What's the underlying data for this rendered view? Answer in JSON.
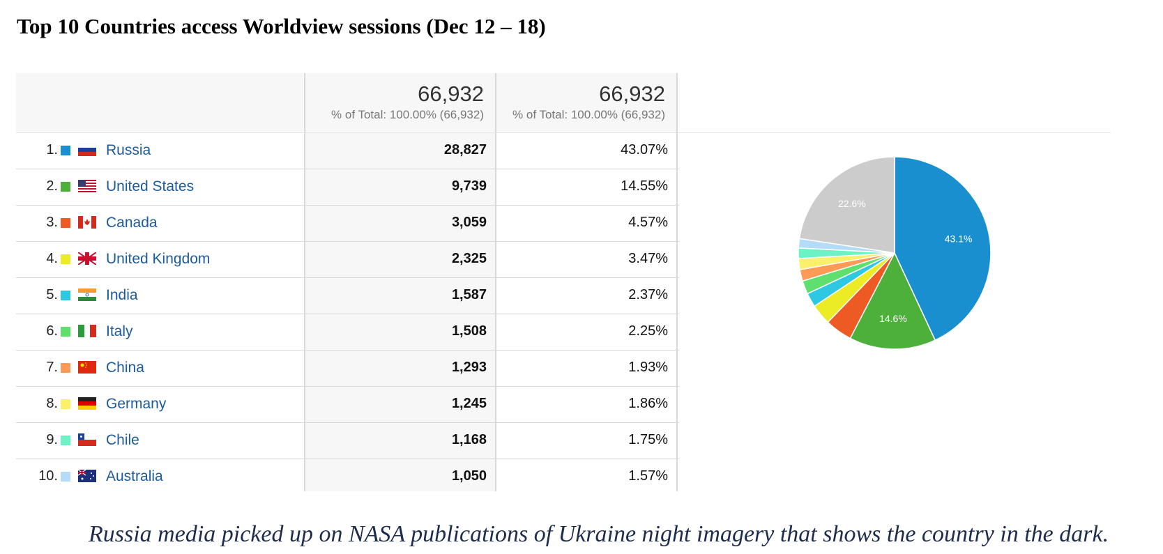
{
  "title": "Top 10 Countries access Worldview sessions (Dec 12 – 18)",
  "caption": "Russia media picked up on NASA publications of Ukraine night imagery that shows the country in the dark.",
  "header": {
    "col1_value": "66,932",
    "col1_sub": "% of Total: 100.00% (66,932)",
    "col2_value": "66,932",
    "col2_sub": "% of Total: 100.00% (66,932)"
  },
  "rows": [
    {
      "index": "1.",
      "flag": "russia-flag",
      "country": "Russia",
      "sessions": "28,827",
      "percent": "43.07%",
      "color": "#1a8fd0"
    },
    {
      "index": "2.",
      "flag": "us-flag",
      "country": "United States",
      "sessions": "9,739",
      "percent": "14.55%",
      "color": "#4cb03a"
    },
    {
      "index": "3.",
      "flag": "canada-flag",
      "country": "Canada",
      "sessions": "3,059",
      "percent": "4.57%",
      "color": "#ed5a23"
    },
    {
      "index": "4.",
      "flag": "uk-flag",
      "country": "United Kingdom",
      "sessions": "2,325",
      "percent": "3.47%",
      "color": "#ecec26"
    },
    {
      "index": "5.",
      "flag": "india-flag",
      "country": "India",
      "sessions": "1,587",
      "percent": "2.37%",
      "color": "#2fc8e2"
    },
    {
      "index": "6.",
      "flag": "italy-flag",
      "country": "Italy",
      "sessions": "1,508",
      "percent": "2.25%",
      "color": "#5fe06e"
    },
    {
      "index": "7.",
      "flag": "china-flag",
      "country": "China",
      "sessions": "1,293",
      "percent": "1.93%",
      "color": "#fd9a55"
    },
    {
      "index": "8.",
      "flag": "germany-flag",
      "country": "Germany",
      "sessions": "1,245",
      "percent": "1.86%",
      "color": "#faf06a"
    },
    {
      "index": "9.",
      "flag": "chile-flag",
      "country": "Chile",
      "sessions": "1,168",
      "percent": "1.75%",
      "color": "#6cf2c4"
    },
    {
      "index": "10.",
      "flag": "australia-flag",
      "country": "Australia",
      "sessions": "1,050",
      "percent": "1.57%",
      "color": "#b4dcf8"
    }
  ],
  "chart_data": {
    "type": "pie",
    "categories": [
      "Russia",
      "United States",
      "Canada",
      "United Kingdom",
      "India",
      "Italy",
      "China",
      "Germany",
      "Chile",
      "Australia",
      ""
    ],
    "values": [
      43.07,
      14.55,
      4.57,
      3.47,
      2.37,
      2.25,
      1.93,
      1.86,
      1.75,
      1.57,
      22.6
    ],
    "colors": [
      "#1a8fd0",
      "#4cb03a",
      "#ed5a23",
      "#ecec26",
      "#2fc8e2",
      "#5fe06e",
      "#fd9a55",
      "#faf06a",
      "#6cf2c4",
      "#b4dcf8",
      "#cccccc"
    ],
    "labels": [
      "43.1%",
      "14.6%",
      "",
      "",
      "",
      "",
      "",
      "",
      "",
      "",
      "22.6%"
    ]
  }
}
